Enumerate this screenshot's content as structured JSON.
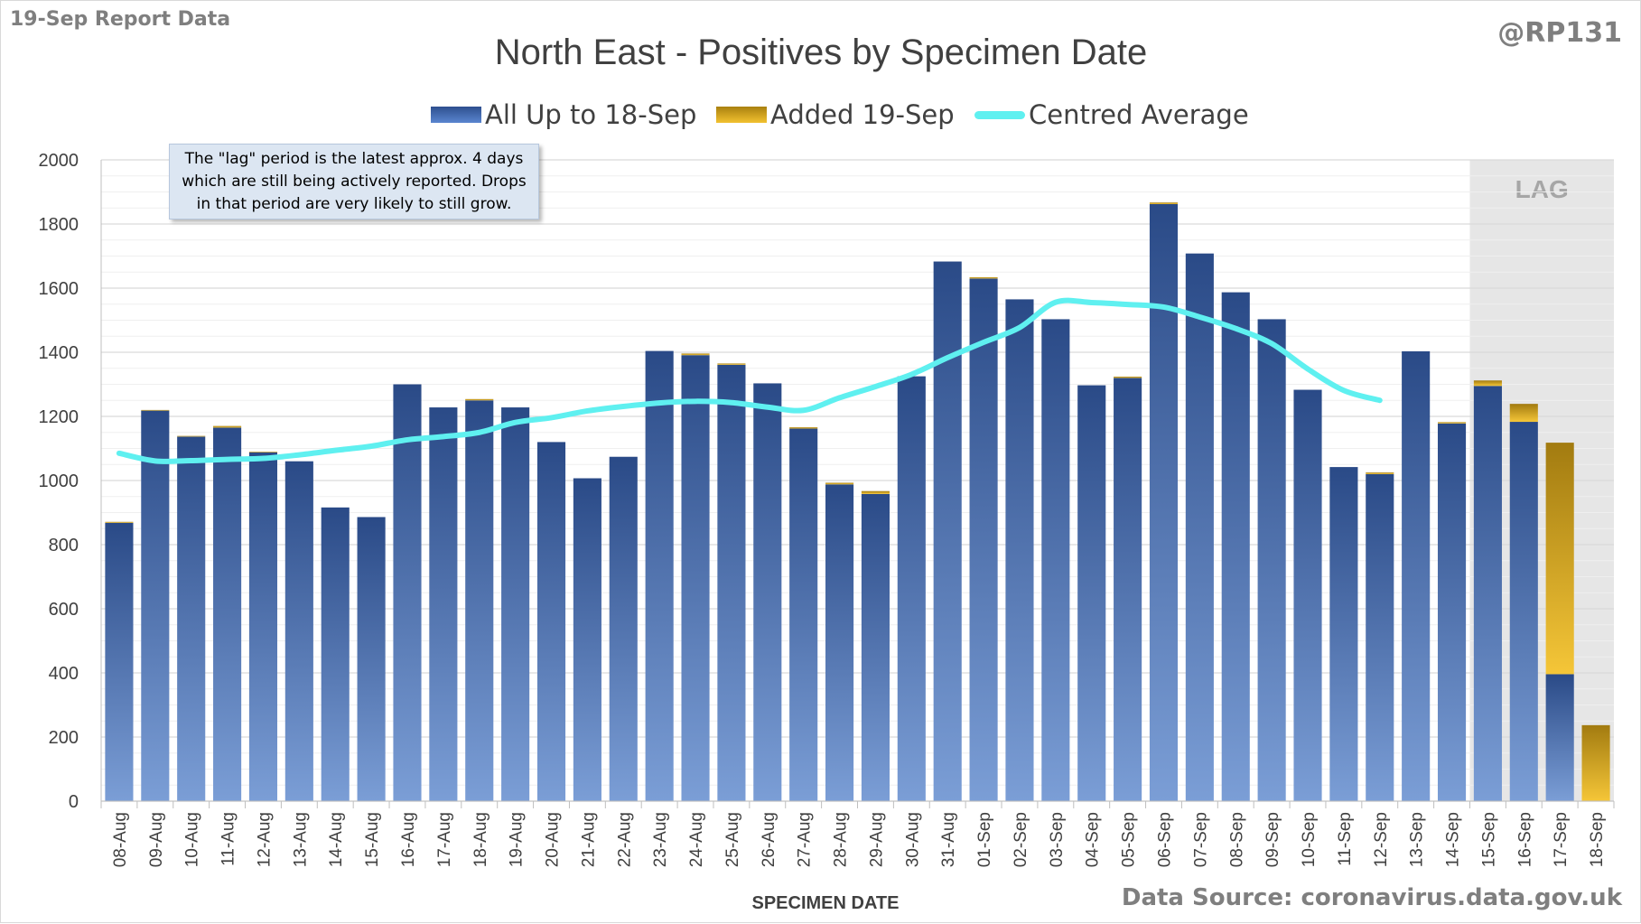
{
  "header": {
    "report_label": "19-Sep Report Data",
    "handle": "@RP131"
  },
  "note": {
    "lines": [
      "The \"lag\" period is the latest approx. 4 days",
      "which are still being actively reported.  Drops",
      "in that period are very likely to still grow."
    ]
  },
  "footer": {
    "source": "Data Source: coronavirus.data.gov.uk"
  },
  "colors": {
    "base_top": "#2a4a87",
    "base_bottom": "#7b9ed6",
    "added_top": "#a27b10",
    "added_bottom": "#f5c638",
    "average_line": "#5ff0f0",
    "lag_shade": "#e6e6e6",
    "grid": "#d9d9d9"
  },
  "chart_data": {
    "type": "bar",
    "stacked": true,
    "title": "North East - Positives by Specimen Date",
    "xlabel": "SPECIMEN DATE",
    "ylabel": "",
    "ylim": [
      0,
      2000
    ],
    "yticks": [
      0,
      200,
      400,
      600,
      800,
      1000,
      1200,
      1400,
      1600,
      1800,
      2000
    ],
    "grid": true,
    "legend_position": "top",
    "categories": [
      "08-Aug",
      "09-Aug",
      "10-Aug",
      "11-Aug",
      "12-Aug",
      "13-Aug",
      "14-Aug",
      "15-Aug",
      "16-Aug",
      "17-Aug",
      "18-Aug",
      "19-Aug",
      "20-Aug",
      "21-Aug",
      "22-Aug",
      "23-Aug",
      "24-Aug",
      "25-Aug",
      "26-Aug",
      "27-Aug",
      "28-Aug",
      "29-Aug",
      "30-Aug",
      "31-Aug",
      "01-Sep",
      "02-Sep",
      "03-Sep",
      "04-Sep",
      "05-Sep",
      "06-Sep",
      "07-Sep",
      "08-Sep",
      "09-Sep",
      "10-Sep",
      "11-Sep",
      "12-Sep",
      "13-Sep",
      "14-Sep",
      "15-Sep",
      "16-Sep",
      "17-Sep",
      "18-Sep"
    ],
    "series": [
      {
        "name": "All Up to 18-Sep",
        "kind": "bar",
        "values": [
          868,
          1218,
          1137,
          1165,
          1088,
          1060,
          916,
          886,
          1300,
          1228,
          1250,
          1228,
          1120,
          1007,
          1074,
          1404,
          1391,
          1361,
          1303,
          1162,
          988,
          958,
          1325,
          1683,
          1630,
          1565,
          1503,
          1297,
          1320,
          1862,
          1708,
          1587,
          1503,
          1283,
          1042,
          1020,
          1403,
          1178,
          1295,
          1183,
          396,
          0
        ]
      },
      {
        "name": "Added 19-Sep",
        "kind": "bar",
        "values": [
          3,
          2,
          2,
          5,
          2,
          0,
          0,
          0,
          0,
          0,
          4,
          0,
          0,
          0,
          0,
          0,
          5,
          4,
          0,
          4,
          5,
          9,
          0,
          0,
          4,
          0,
          0,
          0,
          4,
          5,
          0,
          0,
          0,
          0,
          0,
          5,
          0,
          4,
          17,
          56,
          722,
          237
        ]
      },
      {
        "name": "Centred Average",
        "kind": "line",
        "values": [
          1085,
          1061,
          1062,
          1066,
          1069,
          1080,
          1094,
          1107,
          1127,
          1137,
          1150,
          1181,
          1196,
          1217,
          1231,
          1242,
          1247,
          1243,
          1229,
          1219,
          1258,
          1293,
          1331,
          1383,
          1431,
          1477,
          1556,
          1555,
          1549,
          1541,
          1510,
          1474,
          1427,
          1348,
          1281,
          1250,
          null,
          null,
          null,
          null,
          null,
          null
        ]
      }
    ],
    "lag_region": {
      "label": "LAG",
      "from": "15-Sep",
      "to": "18-Sep"
    }
  }
}
